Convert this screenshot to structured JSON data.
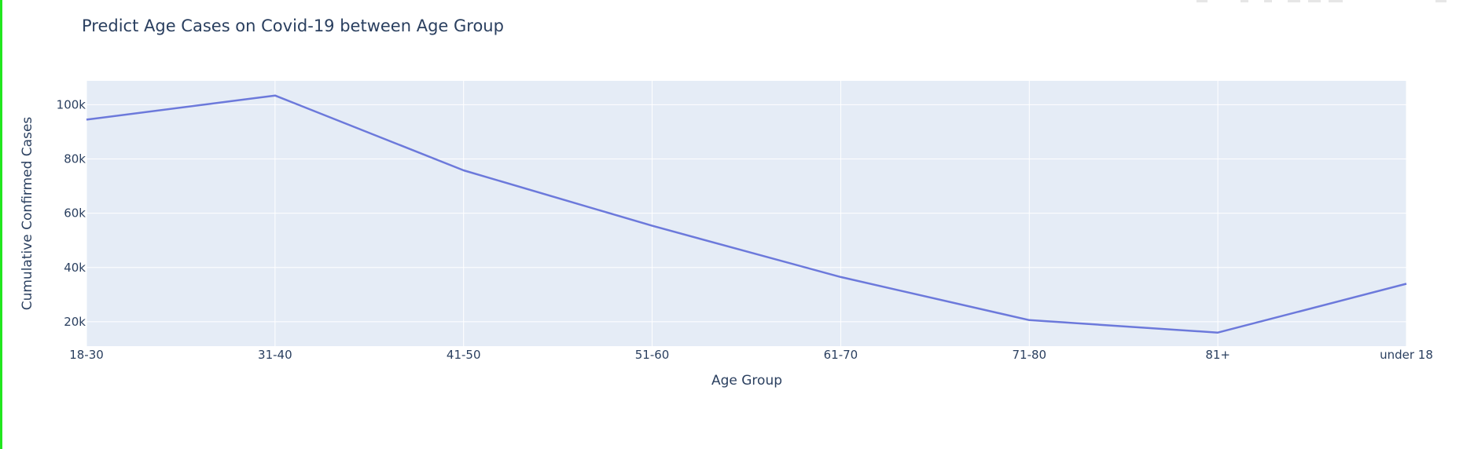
{
  "chart_data": {
    "type": "line",
    "title": "Predict Age Cases on Covid-19 between Age Group",
    "xlabel": "Age Group",
    "ylabel": "Cumulative Confirmed Cases",
    "categories": [
      "18-30",
      "31-40",
      "41-50",
      "51-60",
      "61-70",
      "71-80",
      "81+",
      "under 18"
    ],
    "series": [
      {
        "values": [
          94500,
          103400,
          75800,
          55400,
          36500,
          20600,
          16000,
          34000
        ]
      }
    ],
    "ylim": [
      11000,
      108800
    ],
    "yticks": [
      20000,
      40000,
      60000,
      80000,
      100000
    ],
    "ytick_labels": [
      "20k",
      "40k",
      "60k",
      "80k",
      "100k"
    ],
    "grid": true,
    "colors": {
      "line": "#6c79db",
      "plot_bg": "#e5ecf6",
      "grid": "#ffffff",
      "text": "#2a3f5f"
    }
  }
}
